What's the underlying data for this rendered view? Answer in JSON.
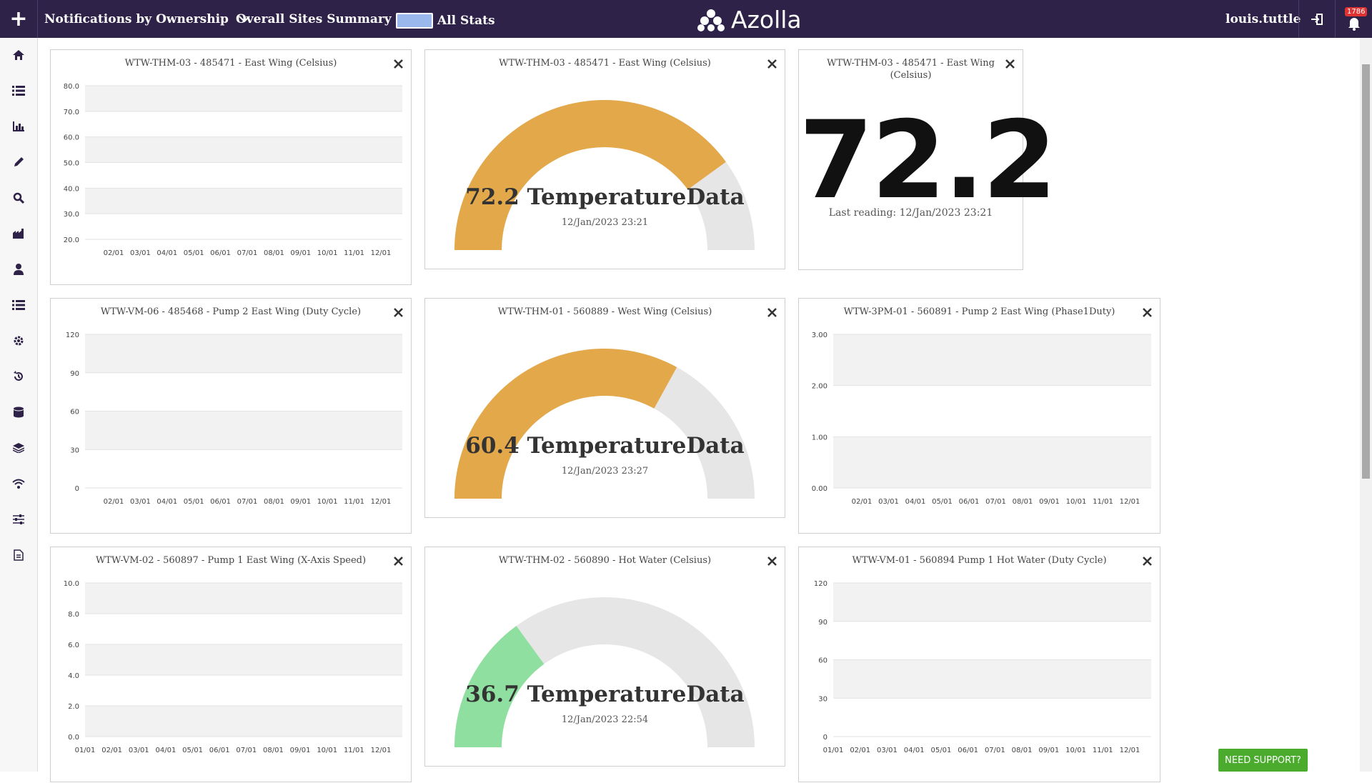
{
  "topbar": {
    "add_label": "+",
    "dropdown1": "Notifications by Ownership",
    "dropdown2": "Overall Sites Summary",
    "toggle_label": "All Stats",
    "brand": "Azolla",
    "username": "louis.tuttle",
    "notification_count": "1786"
  },
  "sidebar": {
    "items": [
      "home-icon",
      "list-icon",
      "bar-chart-icon",
      "pencil-icon",
      "search-icon",
      "building-icon",
      "user-icon",
      "list-icon",
      "settings-icon",
      "history-icon",
      "database-icon",
      "layers-icon",
      "wifi-icon",
      "sliders-icon",
      "document-icon"
    ]
  },
  "colors": {
    "topbar": "#2e2249",
    "gauge_orange": "#e3a84a",
    "gauge_green": "#8fe0a0",
    "gauge_bg": "#e6e6e6",
    "line": "#8fa8e0",
    "support": "#4aab2c"
  },
  "support_label": "NEED SUPPORT?",
  "widgets": [
    {
      "id": "w1",
      "kind": "line",
      "title": "WTW-THM-03 - 485471 - East Wing (Celsius)",
      "y_ticks": [
        "80.0",
        "70.0",
        "60.0",
        "50.0",
        "40.0",
        "30.0",
        "20.0"
      ],
      "x_ticks": [
        "02/01",
        "03/01",
        "04/01",
        "05/01",
        "06/01",
        "07/01",
        "08/01",
        "09/01",
        "10/01",
        "11/01",
        "12/01"
      ]
    },
    {
      "id": "w2",
      "kind": "gauge",
      "title": "WTW-THM-03 - 485471 - East Wing (Celsius)",
      "value": "72.2 TemperatureData",
      "time": "12/Jan/2023 23:21",
      "fraction": 0.8,
      "color": "#e3a84a"
    },
    {
      "id": "w3",
      "kind": "big",
      "title": "WTW-THM-03 - 485471 - East Wing (Celsius)",
      "value": "72.2",
      "sub": "Last reading: 12/Jan/2023 23:21"
    },
    {
      "id": "w4",
      "kind": "line",
      "title": "WTW-VM-06 - 485468 - Pump 2 East Wing (Duty Cycle)",
      "y_ticks": [
        "120",
        "90",
        "60",
        "30",
        "0"
      ],
      "x_ticks": [
        "02/01",
        "03/01",
        "04/01",
        "05/01",
        "06/01",
        "07/01",
        "08/01",
        "09/01",
        "10/01",
        "11/01",
        "12/01"
      ]
    },
    {
      "id": "w5",
      "kind": "gauge",
      "title": "WTW-THM-01 - 560889 - West Wing (Celsius)",
      "value": "60.4 TemperatureData",
      "time": "12/Jan/2023 23:27",
      "fraction": 0.66,
      "color": "#e3a84a"
    },
    {
      "id": "w6",
      "kind": "line",
      "title": "WTW-3PM-01 - 560891 - Pump 2 East Wing (Phase1Duty)",
      "y_ticks": [
        "3.00",
        "2.00",
        "1.00",
        "0.00"
      ],
      "x_ticks": [
        "02/01",
        "03/01",
        "04/01",
        "05/01",
        "06/01",
        "07/01",
        "08/01",
        "09/01",
        "10/01",
        "11/01",
        "12/01"
      ]
    },
    {
      "id": "w7",
      "kind": "line",
      "title": "WTW-VM-02 - 560897 - Pump 1 East Wing (X-Axis Speed)",
      "y_ticks": [
        "10.0",
        "8.0",
        "6.0",
        "4.0",
        "2.0",
        "0.0"
      ],
      "x_ticks": [
        "01/01",
        "02/01",
        "03/01",
        "04/01",
        "05/01",
        "06/01",
        "07/01",
        "08/01",
        "09/01",
        "10/01",
        "11/01",
        "12/01"
      ]
    },
    {
      "id": "w8",
      "kind": "gauge",
      "title": "WTW-THM-02 - 560890 - Hot Water (Celsius)",
      "value": "36.7 TemperatureData",
      "time": "12/Jan/2023 22:54",
      "fraction": 0.3,
      "color": "#8fe0a0"
    },
    {
      "id": "w9",
      "kind": "line",
      "title": "WTW-VM-01 - 560894 Pump 1 Hot Water (Duty Cycle)",
      "y_ticks": [
        "120",
        "90",
        "60",
        "30",
        "0"
      ],
      "x_ticks": [
        "01/01",
        "02/01",
        "03/01",
        "04/01",
        "05/01",
        "06/01",
        "07/01",
        "08/01",
        "09/01",
        "10/01",
        "11/01",
        "12/01"
      ]
    }
  ]
}
